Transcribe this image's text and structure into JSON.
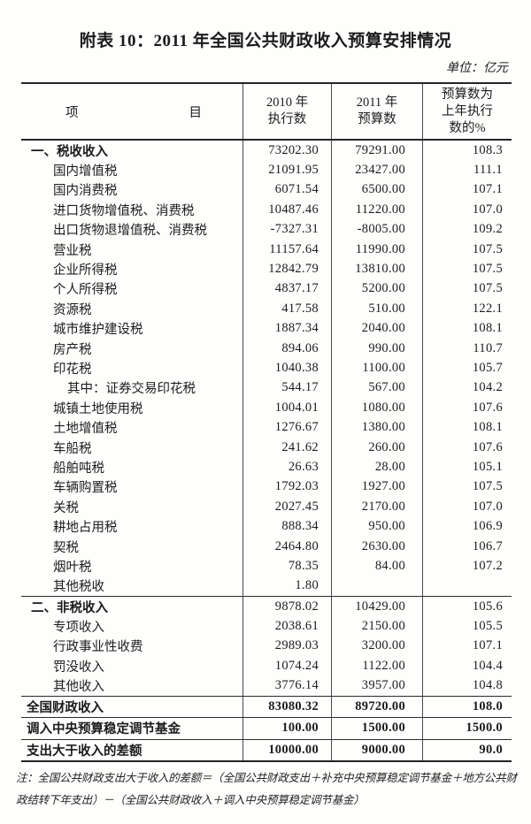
{
  "page": {
    "title": "附表 10：2011 年全国公共财政收入预算安排情况",
    "unit": "单位：亿元"
  },
  "table": {
    "header": {
      "item_left": "项",
      "item_right": "目",
      "col2010": [
        "2010 年",
        "执行数"
      ],
      "col2011": [
        "2011 年",
        "预算数"
      ],
      "colratio": [
        "预算数为",
        "上年执行",
        "数的%"
      ]
    },
    "rows": [
      {
        "label": "一、税收收入",
        "v2010": "73202.30",
        "v2011": "79291.00",
        "ratio": "108.3",
        "level": 0,
        "bold": true,
        "rule": false,
        "tall": false
      },
      {
        "label": "国内增值税",
        "v2010": "21091.95",
        "v2011": "23427.00",
        "ratio": "111.1",
        "level": 1,
        "bold": false,
        "rule": false,
        "tall": false
      },
      {
        "label": "国内消费税",
        "v2010": "6071.54",
        "v2011": "6500.00",
        "ratio": "107.1",
        "level": 1,
        "bold": false,
        "rule": false,
        "tall": false
      },
      {
        "label": "进口货物增值税、消费税",
        "v2010": "10487.46",
        "v2011": "11220.00",
        "ratio": "107.0",
        "level": 1,
        "bold": false,
        "rule": false,
        "tall": false
      },
      {
        "label": "出口货物退增值税、消费税",
        "v2010": "-7327.31",
        "v2011": "-8005.00",
        "ratio": "109.2",
        "level": 1,
        "bold": false,
        "rule": false,
        "tall": false
      },
      {
        "label": "营业税",
        "v2010": "11157.64",
        "v2011": "11990.00",
        "ratio": "107.5",
        "level": 1,
        "bold": false,
        "rule": false,
        "tall": false
      },
      {
        "label": "企业所得税",
        "v2010": "12842.79",
        "v2011": "13810.00",
        "ratio": "107.5",
        "level": 1,
        "bold": false,
        "rule": false,
        "tall": false
      },
      {
        "label": "个人所得税",
        "v2010": "4837.17",
        "v2011": "5200.00",
        "ratio": "107.5",
        "level": 1,
        "bold": false,
        "rule": false,
        "tall": false
      },
      {
        "label": "资源税",
        "v2010": "417.58",
        "v2011": "510.00",
        "ratio": "122.1",
        "level": 1,
        "bold": false,
        "rule": false,
        "tall": false
      },
      {
        "label": "城市维护建设税",
        "v2010": "1887.34",
        "v2011": "2040.00",
        "ratio": "108.1",
        "level": 1,
        "bold": false,
        "rule": false,
        "tall": false
      },
      {
        "label": "房产税",
        "v2010": "894.06",
        "v2011": "990.00",
        "ratio": "110.7",
        "level": 1,
        "bold": false,
        "rule": false,
        "tall": false
      },
      {
        "label": "印花税",
        "v2010": "1040.38",
        "v2011": "1100.00",
        "ratio": "105.7",
        "level": 1,
        "bold": false,
        "rule": false,
        "tall": false
      },
      {
        "label": "其中：证券交易印花税",
        "v2010": "544.17",
        "v2011": "567.00",
        "ratio": "104.2",
        "level": 2,
        "bold": false,
        "rule": false,
        "tall": false
      },
      {
        "label": "城镇土地使用税",
        "v2010": "1004.01",
        "v2011": "1080.00",
        "ratio": "107.6",
        "level": 1,
        "bold": false,
        "rule": false,
        "tall": false
      },
      {
        "label": "土地增值税",
        "v2010": "1276.67",
        "v2011": "1380.00",
        "ratio": "108.1",
        "level": 1,
        "bold": false,
        "rule": false,
        "tall": false
      },
      {
        "label": "车船税",
        "v2010": "241.62",
        "v2011": "260.00",
        "ratio": "107.6",
        "level": 1,
        "bold": false,
        "rule": false,
        "tall": false
      },
      {
        "label": "船舶吨税",
        "v2010": "26.63",
        "v2011": "28.00",
        "ratio": "105.1",
        "level": 1,
        "bold": false,
        "rule": false,
        "tall": false
      },
      {
        "label": "车辆购置税",
        "v2010": "1792.03",
        "v2011": "1927.00",
        "ratio": "107.5",
        "level": 1,
        "bold": false,
        "rule": false,
        "tall": false
      },
      {
        "label": "关税",
        "v2010": "2027.45",
        "v2011": "2170.00",
        "ratio": "107.0",
        "level": 1,
        "bold": false,
        "rule": false,
        "tall": false
      },
      {
        "label": "耕地占用税",
        "v2010": "888.34",
        "v2011": "950.00",
        "ratio": "106.9",
        "level": 1,
        "bold": false,
        "rule": false,
        "tall": false
      },
      {
        "label": "契税",
        "v2010": "2464.80",
        "v2011": "2630.00",
        "ratio": "106.7",
        "level": 1,
        "bold": false,
        "rule": false,
        "tall": false
      },
      {
        "label": "烟叶税",
        "v2010": "78.35",
        "v2011": "84.00",
        "ratio": "107.2",
        "level": 1,
        "bold": false,
        "rule": false,
        "tall": false
      },
      {
        "label": "其他税收",
        "v2010": "1.80",
        "v2011": "",
        "ratio": "",
        "level": 1,
        "bold": false,
        "rule": false,
        "tall": false
      },
      {
        "label": "二、非税收入",
        "v2010": "9878.02",
        "v2011": "10429.00",
        "ratio": "105.6",
        "level": 0,
        "bold": true,
        "rule": true,
        "tall": false
      },
      {
        "label": "专项收入",
        "v2010": "2038.61",
        "v2011": "2150.00",
        "ratio": "105.5",
        "level": 1,
        "bold": false,
        "rule": false,
        "tall": false
      },
      {
        "label": "行政事业性收费",
        "v2010": "2989.03",
        "v2011": "3200.00",
        "ratio": "107.1",
        "level": 1,
        "bold": false,
        "rule": false,
        "tall": false
      },
      {
        "label": "罚没收入",
        "v2010": "1074.24",
        "v2011": "1122.00",
        "ratio": "104.4",
        "level": 1,
        "bold": false,
        "rule": false,
        "tall": false
      },
      {
        "label": "其他收入",
        "v2010": "3776.14",
        "v2011": "3957.00",
        "ratio": "104.8",
        "level": 1,
        "bold": false,
        "rule": false,
        "tall": false
      },
      {
        "label": "全国财政收入",
        "v2010": "83080.32",
        "v2011": "89720.00",
        "ratio": "108.0",
        "level": 0,
        "bold": true,
        "rule": true,
        "tall": true
      },
      {
        "label": "调入中央预算稳定调节基金",
        "v2010": "100.00",
        "v2011": "1500.00",
        "ratio": "1500.0",
        "level": 0,
        "bold": true,
        "rule": true,
        "tall": true
      },
      {
        "label": "支出大于收入的差额",
        "v2010": "10000.00",
        "v2011": "9000.00",
        "ratio": "90.0",
        "level": 0,
        "bold": true,
        "rule": true,
        "tall": true
      }
    ]
  },
  "footnote": {
    "line1": "注：全国公共财政支出大于收入的差额＝（全国公共财政支出＋补充中央预算稳定调节基金＋地方公共财",
    "line2": "政结转下年支出）－（全国公共财政收入＋调入中央预算稳定调节基金）"
  },
  "colors": {
    "paper": "#fefefc",
    "ink": "#1b1b1b",
    "heavy_rule": "#242424",
    "grid_line": "#4a4a4a"
  }
}
